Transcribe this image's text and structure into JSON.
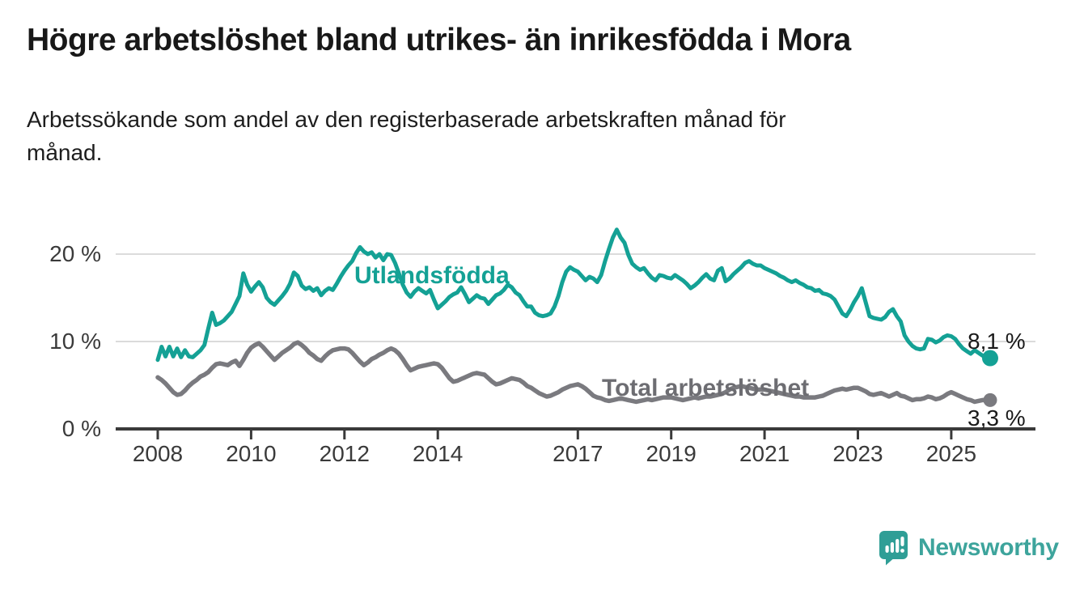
{
  "header": {
    "title": "Högre arbetslöshet bland utrikes- än inrikesfödda i Mora",
    "subtitle_line1": "Arbetssökande som andel av den registerbaserade arbetskraften månad för",
    "subtitle_line2": "månad."
  },
  "colors": {
    "teal": "#14a195",
    "gray_line": "#7a7a7f",
    "gray_label": "#6d6d72",
    "gridline": "#dbdbdb",
    "axis": "#3a3a3a",
    "text": "#1a1a1a",
    "brand_teal": "#3da49c",
    "logo_bubble": "#2f9e96"
  },
  "chart_data": {
    "type": "line",
    "title": "Högre arbetslöshet bland utrikes- än inrikesfödda i Mora",
    "subtitle": "Arbetssökande som andel av den registerbaserade arbetskraften månad för månad.",
    "unit": "percent of registered labour force",
    "frequency": "monthly",
    "x_start": "2008-01",
    "x_end": "2025-11",
    "x_tick_years": [
      2008,
      2010,
      2012,
      2014,
      2017,
      2019,
      2021,
      2023,
      2025
    ],
    "y_ticks": [
      {
        "label": "0 %",
        "value": 0
      },
      {
        "label": "10 %",
        "value": 10
      },
      {
        "label": "20 %",
        "value": 20
      }
    ],
    "ylim": [
      0,
      24
    ],
    "grid": "horizontal",
    "legend_position": "inline-labels-on-chart",
    "series": [
      {
        "name": "Utlandsfödda",
        "color": "#14a195",
        "end_label": "8,1 %",
        "end_value": 8.1,
        "values": [
          7.9,
          9.4,
          8.3,
          9.4,
          8.3,
          9.2,
          8.2,
          9.0,
          8.3,
          8.2,
          8.6,
          9.0,
          9.6,
          11.5,
          13.3,
          11.9,
          12.1,
          12.4,
          12.9,
          13.4,
          14.3,
          15.2,
          17.8,
          16.5,
          15.7,
          16.3,
          16.8,
          16.2,
          15.0,
          14.5,
          14.2,
          14.7,
          15.2,
          15.8,
          16.6,
          17.9,
          17.5,
          16.4,
          16.0,
          16.2,
          15.8,
          16.1,
          15.3,
          15.8,
          16.1,
          15.9,
          16.6,
          17.4,
          18.1,
          18.7,
          19.2,
          20.1,
          20.8,
          20.3,
          20.0,
          20.2,
          19.6,
          20.0,
          19.3,
          20.0,
          19.9,
          19.0,
          17.8,
          16.5,
          15.6,
          15.1,
          15.7,
          16.1,
          15.8,
          15.5,
          15.9,
          14.8,
          13.8,
          14.2,
          14.6,
          15.1,
          15.4,
          15.6,
          16.2,
          15.4,
          14.5,
          14.9,
          15.3,
          15.0,
          14.9,
          14.3,
          14.8,
          15.3,
          15.5,
          15.9,
          16.5,
          16.2,
          15.6,
          15.3,
          14.6,
          14.0,
          14.0,
          13.3,
          13.0,
          12.9,
          13.0,
          13.2,
          14.0,
          15.2,
          16.8,
          18.0,
          18.5,
          18.2,
          18.0,
          17.5,
          17.0,
          17.4,
          17.2,
          16.8,
          17.6,
          19.2,
          20.6,
          21.9,
          22.8,
          21.9,
          21.3,
          19.9,
          18.9,
          18.5,
          18.2,
          18.4,
          17.8,
          17.3,
          17.0,
          17.6,
          17.5,
          17.3,
          17.2,
          17.6,
          17.3,
          17.0,
          16.6,
          16.1,
          16.4,
          16.8,
          17.3,
          17.7,
          17.2,
          17.0,
          18.1,
          18.4,
          16.9,
          17.2,
          17.7,
          18.1,
          18.5,
          19.0,
          19.2,
          18.9,
          18.7,
          18.7,
          18.4,
          18.2,
          18.0,
          17.8,
          17.5,
          17.3,
          17.0,
          16.8,
          17.0,
          16.7,
          16.5,
          16.2,
          16.1,
          15.8,
          15.9,
          15.5,
          15.4,
          15.2,
          14.8,
          14.0,
          13.2,
          12.9,
          13.6,
          14.5,
          15.2,
          16.1,
          14.5,
          12.9,
          12.7,
          12.6,
          12.5,
          12.8,
          13.4,
          13.7,
          12.9,
          12.3,
          10.7,
          10.0,
          9.5,
          9.2,
          9.1,
          9.2,
          10.3,
          10.2,
          9.9,
          10.1,
          10.5,
          10.7,
          10.6,
          10.3,
          9.7,
          9.2,
          8.9,
          8.6,
          9.0,
          8.7,
          8.4,
          8.2,
          8.1
        ]
      },
      {
        "name": "Total arbetslöshet",
        "color": "#7a7a7f",
        "end_label": "3,3 %",
        "end_value": 3.3,
        "values": [
          5.9,
          5.6,
          5.2,
          4.7,
          4.2,
          3.9,
          4.0,
          4.4,
          4.9,
          5.3,
          5.6,
          6.0,
          6.2,
          6.5,
          7.0,
          7.4,
          7.5,
          7.4,
          7.3,
          7.6,
          7.8,
          7.2,
          7.9,
          8.7,
          9.3,
          9.6,
          9.8,
          9.4,
          8.9,
          8.4,
          7.9,
          8.3,
          8.7,
          9.0,
          9.3,
          9.7,
          9.9,
          9.6,
          9.2,
          8.7,
          8.4,
          8.0,
          7.8,
          8.3,
          8.7,
          9.0,
          9.1,
          9.2,
          9.2,
          9.1,
          8.7,
          8.2,
          7.7,
          7.3,
          7.6,
          8.0,
          8.2,
          8.5,
          8.7,
          9.0,
          9.2,
          9.0,
          8.6,
          8.0,
          7.3,
          6.7,
          6.9,
          7.1,
          7.2,
          7.3,
          7.4,
          7.5,
          7.4,
          7.0,
          6.4,
          5.8,
          5.4,
          5.5,
          5.7,
          5.9,
          6.1,
          6.3,
          6.4,
          6.3,
          6.2,
          5.8,
          5.4,
          5.1,
          5.2,
          5.4,
          5.6,
          5.8,
          5.7,
          5.6,
          5.3,
          4.9,
          4.7,
          4.4,
          4.1,
          3.9,
          3.7,
          3.8,
          4.0,
          4.2,
          4.5,
          4.7,
          4.9,
          5.0,
          5.1,
          4.9,
          4.6,
          4.2,
          3.8,
          3.6,
          3.5,
          3.3,
          3.2,
          3.3,
          3.4,
          3.5,
          3.4,
          3.3,
          3.2,
          3.1,
          3.2,
          3.3,
          3.4,
          3.3,
          3.4,
          3.5,
          3.6,
          3.6,
          3.6,
          3.5,
          3.4,
          3.3,
          3.4,
          3.5,
          3.6,
          3.5,
          3.6,
          3.7,
          3.7,
          3.8,
          3.9,
          4.0,
          4.2,
          4.5,
          4.7,
          4.8,
          4.9,
          4.8,
          4.7,
          4.6,
          4.5,
          4.5,
          4.5,
          4.4,
          4.3,
          4.2,
          4.1,
          4.0,
          3.9,
          3.8,
          3.7,
          3.7,
          3.6,
          3.6,
          3.6,
          3.6,
          3.7,
          3.8,
          4.0,
          4.2,
          4.4,
          4.5,
          4.6,
          4.5,
          4.6,
          4.7,
          4.7,
          4.5,
          4.3,
          4.0,
          3.9,
          4.0,
          4.1,
          3.9,
          3.7,
          3.9,
          4.1,
          3.8,
          3.7,
          3.5,
          3.3,
          3.4,
          3.4,
          3.5,
          3.7,
          3.6,
          3.4,
          3.5,
          3.7,
          4.0,
          4.2,
          4.0,
          3.8,
          3.6,
          3.4,
          3.3,
          3.1,
          3.2,
          3.3,
          3.3,
          3.3
        ]
      }
    ]
  },
  "footer": {
    "brand": "Newsworthy",
    "logo_icon": "speech-bubble-bar-chart-icon"
  }
}
